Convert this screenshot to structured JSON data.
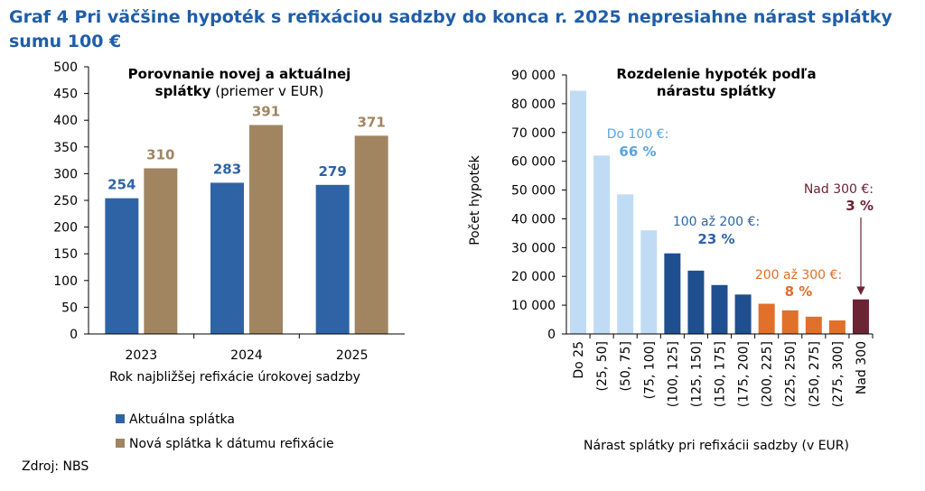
{
  "title": "Graf 4 Pri väčšine hypoték s refixáciou sadzby do konca r. 2025 nepresiahne nárast splátky sumu 100 €",
  "source": "Zdroj: NBS",
  "colors": {
    "title": "#1f5ea8",
    "current": "#2e64a6",
    "new": "#a08560",
    "light_blue": "#c0dcf5",
    "dark_blue": "#1f4f8f",
    "orange": "#e0702a",
    "maroon": "#6b2434",
    "label_light": "#5aa4e0",
    "label_blue": "#2e64a6",
    "label_orange": "#e0702a",
    "label_maroon": "#6b2434"
  },
  "chart_data": [
    {
      "type": "bar",
      "title_line1": "Porovnanie novej a aktuálnej",
      "title_line2_bold": "splátky",
      "title_line2_normal": " (priemer v EUR)",
      "categories": [
        "2023",
        "2024",
        "2025"
      ],
      "series": [
        {
          "name": "Aktuálna splátka",
          "values": [
            254,
            283,
            279
          ],
          "labels": [
            "254",
            "283",
            "279"
          ]
        },
        {
          "name": "Nová splátka k dátumu refixácie",
          "values": [
            310,
            391,
            371
          ],
          "labels": [
            "310",
            "391",
            "371"
          ]
        }
      ],
      "xlabel": "Rok najbližšej refixácie úrokovej sadzby",
      "ylabel": "",
      "ylim": [
        0,
        500
      ],
      "yticks": [
        "0",
        "50",
        "100",
        "150",
        "200",
        "250",
        "300",
        "350",
        "400",
        "450",
        "500"
      ],
      "legend_position": "bottom"
    },
    {
      "type": "bar",
      "title_line1": "Rozdelenie hypoték podľa",
      "title_line2": "nárastu splátky",
      "categories": [
        "Do 25",
        "(25, 50]",
        "(50, 75]",
        "(75, 100]",
        "(100, 125]",
        "(125, 150]",
        "(150, 175]",
        "(175, 200]",
        "(200, 225]",
        "(225, 250]",
        "(250, 275]",
        "(275, 300]",
        "Nad 300"
      ],
      "values": [
        84500,
        62000,
        48500,
        36000,
        28000,
        22000,
        17000,
        13700,
        10500,
        8200,
        6000,
        4700,
        12000
      ],
      "groups": [
        "light_blue",
        "light_blue",
        "light_blue",
        "light_blue",
        "dark_blue",
        "dark_blue",
        "dark_blue",
        "dark_blue",
        "orange",
        "orange",
        "orange",
        "orange",
        "maroon"
      ],
      "xlabel": "Nárast splátky pri refixácii sadzby (v EUR)",
      "ylabel": "Počet hypoték",
      "ylim": [
        0,
        90000
      ],
      "yticks": [
        "0",
        "10 000",
        "20 000",
        "30 000",
        "40 000",
        "50 000",
        "60 000",
        "70 000",
        "80 000",
        "90 000"
      ],
      "annotations": [
        {
          "label": "Do 100 €:",
          "value": "66 %",
          "group": "light_blue"
        },
        {
          "label": "100 až 200 €:",
          "value": "23 %",
          "group": "dark_blue"
        },
        {
          "label": "200 až 300 €:",
          "value": "8 %",
          "group": "orange"
        },
        {
          "label": "Nad 300 €:",
          "value": "3 %",
          "group": "maroon"
        }
      ]
    }
  ]
}
